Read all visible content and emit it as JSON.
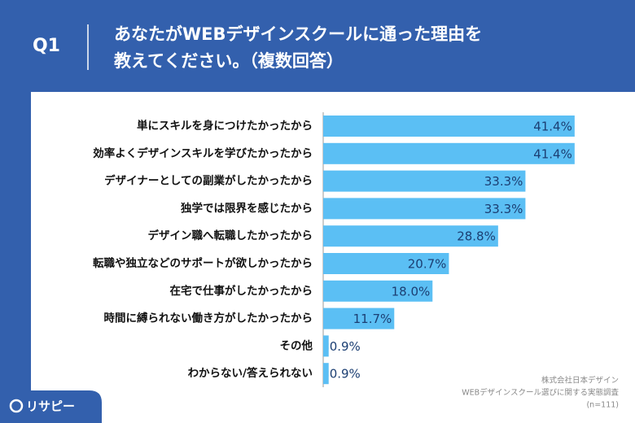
{
  "header": {
    "question": "Q1",
    "title_lines": [
      "あなたがWEBデザインスクールに通った理由を",
      "教えてください。（複数回答）"
    ]
  },
  "chart_data": {
    "type": "bar",
    "orientation": "horizontal",
    "categories": [
      "単にスキルを身につけたかったから",
      "効率よくデザインスキルを学びたかったから",
      "デザイナーとしての副業がしたかったから",
      "独学では限界を感じたから",
      "デザイン職へ転職したかったから",
      "転職や独立などのサポートが欲しかったから",
      "在宅で仕事がしたかったから",
      "時間に縛られない働き方がしたかったから",
      "その他",
      "わからない/答えられない"
    ],
    "values": [
      41.4,
      41.4,
      33.3,
      33.3,
      28.8,
      20.7,
      18.0,
      11.7,
      0.9,
      0.9
    ],
    "value_labels": [
      "41.4%",
      "41.4%",
      "33.3%",
      "33.3%",
      "28.8%",
      "20.7%",
      "18.0%",
      "11.7%",
      "0.9%",
      "0.9%"
    ],
    "color": "#5bbff4",
    "xlim": [
      0,
      50
    ]
  },
  "source_lines": [
    "株式会社日本デザイン",
    "WEBデザインスクール選びに関する実態調査",
    "(n=111)"
  ],
  "logo": "リサピー"
}
